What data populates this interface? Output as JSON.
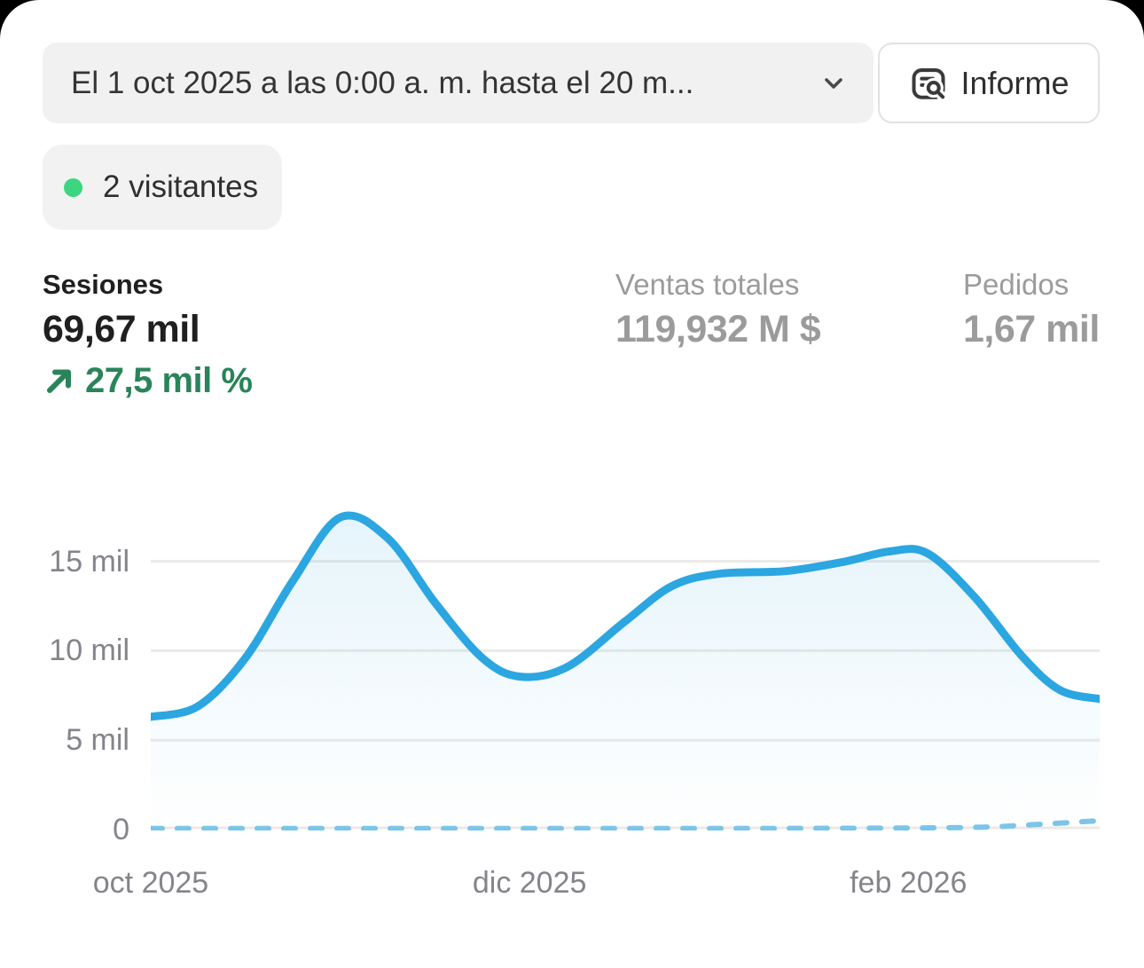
{
  "date_selector": {
    "label": "El 1 oct 2025 a las 0:00 a. m. hasta el 20 m..."
  },
  "report_button": {
    "label": "Informe",
    "icon": "report-search-icon"
  },
  "visitors_badge": {
    "label": "2 visitantes",
    "dot_color": "#3bd67f"
  },
  "metrics": {
    "sessions": {
      "label": "Sesiones",
      "value": "69,67 mil",
      "delta": "27,5 mil %",
      "delta_direction": "up",
      "selected": true
    },
    "total_sales": {
      "label": "Ventas totales",
      "value": "119,932 M $",
      "selected": false
    },
    "orders": {
      "label": "Pedidos",
      "value": "1,67 mil",
      "selected": false
    }
  },
  "colors": {
    "line_current": "#2ba6e0",
    "line_previous": "#7cc5e8",
    "gridline": "#eceae7",
    "delta_green": "#29845a",
    "metric_gray": "#9b9b9b",
    "axis_gray": "#84848b"
  },
  "chart_data": {
    "type": "line",
    "title": "Sesiones",
    "unit": "sesiones",
    "grid": true,
    "x_domain_months": [
      0,
      5.01
    ],
    "x_ticks": [
      {
        "month": 0,
        "label": "oct 2025"
      },
      {
        "month": 2,
        "label": "dic 2025"
      },
      {
        "month": 4,
        "label": "feb 2026"
      }
    ],
    "y_ticks": [
      {
        "value": 0,
        "label": "0"
      },
      {
        "value": 5000,
        "label": "5 mil"
      },
      {
        "value": 10000,
        "label": "10 mil"
      },
      {
        "value": 15000,
        "label": "15 mil"
      }
    ],
    "y_range": [
      0,
      18600
    ],
    "series": [
      {
        "name": "Sesiones — periodo actual",
        "style": "solid",
        "color": "#2ba6e0",
        "fill": true,
        "points": [
          [
            0,
            6300
          ],
          [
            0.25,
            6900
          ],
          [
            0.5,
            9600
          ],
          [
            0.75,
            13900
          ],
          [
            1,
            17450
          ],
          [
            1.25,
            16300
          ],
          [
            1.5,
            12700
          ],
          [
            1.75,
            9600
          ],
          [
            1.95,
            8550
          ],
          [
            2.2,
            9100
          ],
          [
            2.5,
            11600
          ],
          [
            2.75,
            13600
          ],
          [
            3,
            14300
          ],
          [
            3.35,
            14450
          ],
          [
            3.65,
            14950
          ],
          [
            3.9,
            15550
          ],
          [
            4.1,
            15450
          ],
          [
            4.35,
            13000
          ],
          [
            4.6,
            9700
          ],
          [
            4.8,
            7800
          ],
          [
            5.01,
            7300
          ]
        ]
      },
      {
        "name": "Sesiones — periodo anterior",
        "style": "dashed",
        "color": "#7cc5e8",
        "fill": false,
        "points": [
          [
            0,
            60
          ],
          [
            0.5,
            60
          ],
          [
            1,
            60
          ],
          [
            1.5,
            60
          ],
          [
            2,
            60
          ],
          [
            2.5,
            60
          ],
          [
            3,
            60
          ],
          [
            3.5,
            70
          ],
          [
            4,
            90
          ],
          [
            4.4,
            140
          ],
          [
            4.7,
            300
          ],
          [
            5.01,
            500
          ]
        ]
      }
    ]
  }
}
